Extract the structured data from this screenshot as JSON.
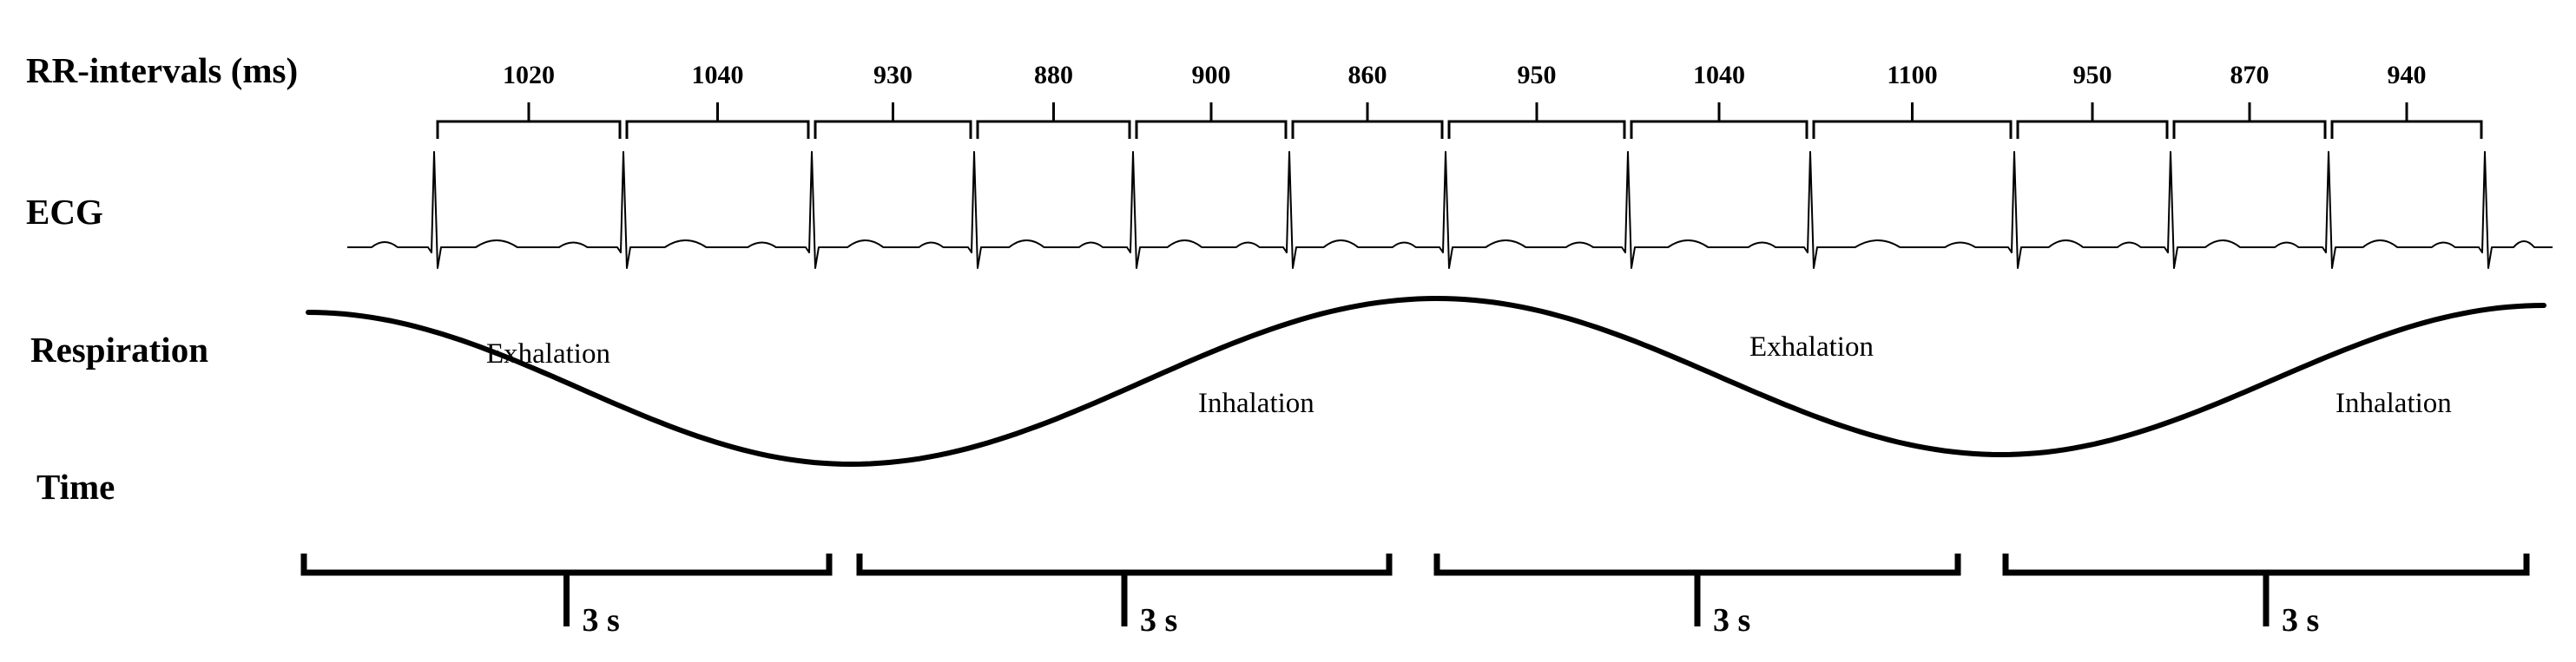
{
  "labels": {
    "rr": "RR-intervals (ms)",
    "ecg": "ECG",
    "respiration": "Respiration",
    "time": "Time"
  },
  "rr_intervals": [
    1020,
    1040,
    930,
    880,
    900,
    860,
    950,
    1040,
    1100,
    950,
    870,
    940
  ],
  "phases": [
    "Exhalation",
    "Inhalation",
    "Exhalation",
    "Inhalation"
  ],
  "time_segments": [
    "3 s",
    "3 s",
    "3 s",
    "3 s"
  ]
}
